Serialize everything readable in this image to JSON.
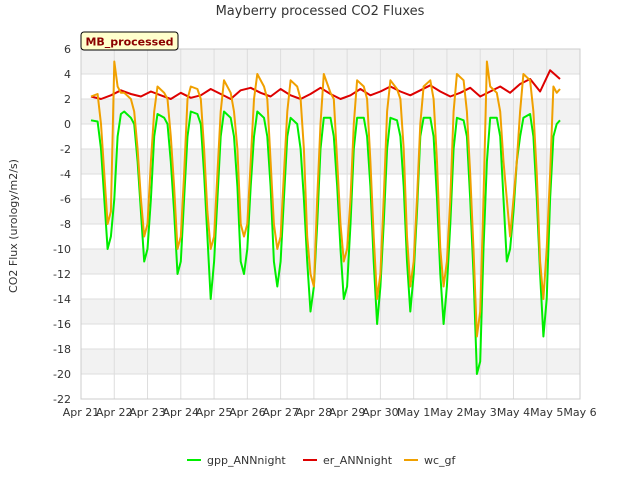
{
  "chart_data": {
    "type": "line",
    "title": "Mayberry processed CO2 Fluxes",
    "badge": "MB_processed",
    "xlabel": "",
    "ylabel": "CO2 Flux (urology/m2/s)",
    "ylim": [
      -22,
      6
    ],
    "yticks": [
      -22,
      -20,
      -18,
      -16,
      -14,
      -12,
      -10,
      -8,
      -6,
      -4,
      -2,
      0,
      2,
      4,
      6
    ],
    "xlim": [
      0,
      15
    ],
    "xtick_labels": [
      "Apr 21",
      "Apr 22",
      "Apr 23",
      "Apr 24",
      "Apr 25",
      "Apr 26",
      "Apr 27",
      "Apr 28",
      "Apr 29",
      "Apr 30",
      "May 1",
      "May 2",
      "May 3",
      "May 4",
      "May 5",
      "May 6"
    ],
    "x_units": "days since Apr 21 00:00",
    "grid": true,
    "legend_position": "bottom",
    "series": [
      {
        "name": "gpp_ANNnight",
        "color": "#00ee00",
        "x": [
          0.3,
          0.5,
          0.6,
          0.7,
          0.8,
          0.9,
          1.0,
          1.1,
          1.2,
          1.3,
          1.5,
          1.6,
          1.7,
          1.8,
          1.9,
          2.0,
          2.1,
          2.2,
          2.3,
          2.5,
          2.6,
          2.7,
          2.8,
          2.9,
          3.0,
          3.1,
          3.2,
          3.3,
          3.5,
          3.6,
          3.7,
          3.8,
          3.9,
          4.0,
          4.1,
          4.2,
          4.3,
          4.5,
          4.6,
          4.7,
          4.8,
          4.9,
          5.0,
          5.1,
          5.2,
          5.3,
          5.5,
          5.6,
          5.7,
          5.8,
          5.9,
          6.0,
          6.1,
          6.2,
          6.3,
          6.5,
          6.6,
          6.7,
          6.8,
          6.9,
          7.0,
          7.1,
          7.2,
          7.3,
          7.5,
          7.6,
          7.7,
          7.8,
          7.9,
          8.0,
          8.1,
          8.2,
          8.3,
          8.5,
          8.6,
          8.7,
          8.8,
          8.9,
          9.0,
          9.1,
          9.2,
          9.3,
          9.5,
          9.6,
          9.7,
          9.8,
          9.9,
          10.0,
          10.1,
          10.2,
          10.3,
          10.5,
          10.6,
          10.7,
          10.8,
          10.9,
          11.0,
          11.1,
          11.2,
          11.3,
          11.5,
          11.6,
          11.7,
          11.8,
          11.9,
          12.0,
          12.1,
          12.2,
          12.3,
          12.5,
          12.6,
          12.7,
          12.8,
          12.9,
          13.0,
          13.1,
          13.2,
          13.3,
          13.5,
          13.6,
          13.7,
          13.8,
          13.9,
          14.0,
          14.1,
          14.2,
          14.3,
          14.4
        ],
        "y": [
          0.3,
          0.2,
          -2,
          -6,
          -10,
          -9,
          -6,
          -1,
          0.8,
          1,
          0.5,
          0,
          -3,
          -7,
          -11,
          -10,
          -6,
          -1,
          0.8,
          0.5,
          0,
          -3,
          -7,
          -12,
          -11,
          -6,
          -1,
          1,
          0.8,
          0,
          -4,
          -9,
          -14,
          -11,
          -6,
          -1,
          1,
          0.5,
          -1,
          -5,
          -11,
          -12,
          -10,
          -5,
          -1,
          1,
          0.5,
          -1,
          -5,
          -11,
          -13,
          -11,
          -6,
          -1,
          0.5,
          0,
          -2,
          -6,
          -11,
          -15,
          -13,
          -8,
          -2,
          0.5,
          0.5,
          -1,
          -5,
          -10,
          -14,
          -13,
          -8,
          -2,
          0.5,
          0.5,
          -1,
          -5,
          -11,
          -16,
          -13,
          -8,
          -2,
          0.5,
          0.3,
          -1,
          -5,
          -11,
          -15,
          -12,
          -7,
          -1,
          0.5,
          0.5,
          -1,
          -6,
          -12,
          -16,
          -13,
          -8,
          -2,
          0.5,
          0.3,
          -1,
          -6,
          -12,
          -20,
          -19,
          -10,
          -3,
          0.5,
          0.5,
          -1,
          -6,
          -11,
          -10,
          -7,
          -3,
          -1,
          0.5,
          0.8,
          -1,
          -6,
          -12,
          -17,
          -14,
          -6,
          -1,
          0,
          0.3
        ]
      },
      {
        "name": "er_ANNnight",
        "color": "#dd0000",
        "x": [
          0.3,
          0.6,
          0.9,
          1.2,
          1.5,
          1.8,
          2.1,
          2.4,
          2.7,
          3.0,
          3.3,
          3.6,
          3.9,
          4.2,
          4.5,
          4.8,
          5.1,
          5.4,
          5.7,
          6.0,
          6.3,
          6.6,
          6.9,
          7.2,
          7.5,
          7.8,
          8.1,
          8.4,
          8.7,
          9.0,
          9.3,
          9.6,
          9.9,
          10.2,
          10.5,
          10.8,
          11.1,
          11.4,
          11.7,
          12.0,
          12.3,
          12.6,
          12.9,
          13.2,
          13.5,
          13.8,
          14.1,
          14.4
        ],
        "y": [
          2.2,
          2.0,
          2.3,
          2.7,
          2.4,
          2.2,
          2.6,
          2.3,
          2.0,
          2.5,
          2.1,
          2.3,
          2.8,
          2.4,
          2.0,
          2.7,
          2.9,
          2.5,
          2.2,
          2.8,
          2.3,
          2.0,
          2.4,
          2.9,
          2.4,
          2.0,
          2.3,
          2.8,
          2.3,
          2.6,
          3.0,
          2.6,
          2.3,
          2.7,
          3.1,
          2.6,
          2.2,
          2.5,
          2.9,
          2.2,
          2.6,
          3.0,
          2.5,
          3.2,
          3.6,
          2.6,
          4.3,
          3.6
        ]
      },
      {
        "name": "wc_gf",
        "color": "#f0a000",
        "x": [
          0.3,
          0.5,
          0.6,
          0.7,
          0.8,
          0.9,
          1.0,
          1.1,
          1.2,
          1.3,
          1.5,
          1.6,
          1.7,
          1.8,
          1.9,
          2.0,
          2.1,
          2.2,
          2.3,
          2.5,
          2.6,
          2.7,
          2.8,
          2.9,
          3.0,
          3.1,
          3.2,
          3.3,
          3.5,
          3.6,
          3.7,
          3.8,
          3.9,
          4.0,
          4.1,
          4.2,
          4.3,
          4.5,
          4.6,
          4.7,
          4.8,
          4.9,
          5.0,
          5.1,
          5.2,
          5.3,
          5.5,
          5.6,
          5.7,
          5.8,
          5.9,
          6.0,
          6.1,
          6.2,
          6.3,
          6.5,
          6.6,
          6.7,
          6.8,
          6.9,
          7.0,
          7.1,
          7.2,
          7.3,
          7.5,
          7.6,
          7.7,
          7.8,
          7.9,
          8.0,
          8.1,
          8.2,
          8.3,
          8.5,
          8.6,
          8.7,
          8.8,
          8.9,
          9.0,
          9.1,
          9.2,
          9.3,
          9.5,
          9.6,
          9.7,
          9.8,
          9.9,
          10.0,
          10.1,
          10.2,
          10.3,
          10.5,
          10.6,
          10.7,
          10.8,
          10.9,
          11.0,
          11.1,
          11.2,
          11.3,
          11.5,
          11.6,
          11.7,
          11.8,
          11.9,
          12.0,
          12.1,
          12.2,
          12.3,
          12.5,
          12.6,
          12.7,
          12.8,
          12.9,
          13.0,
          13.1,
          13.2,
          13.3,
          13.5,
          13.6,
          13.7,
          13.8,
          13.9,
          14.0,
          14.1,
          14.2,
          14.3,
          14.4
        ],
        "y": [
          2.2,
          2.4,
          0,
          -4,
          -8,
          -7,
          5,
          3,
          2.5,
          2.5,
          2.0,
          1,
          -2,
          -6,
          -9,
          -8,
          -3,
          1,
          3.0,
          2.5,
          2.0,
          -1,
          -5,
          -10,
          -9,
          -4,
          2,
          3.0,
          2.8,
          2,
          -2,
          -7,
          -10,
          -9,
          -4,
          1,
          3.5,
          2.5,
          1,
          -2,
          -8,
          -9,
          -8,
          -3,
          2,
          4.0,
          3.0,
          2,
          -3,
          -8,
          -10,
          -9,
          -4,
          1,
          3.5,
          3.0,
          2,
          -2,
          -9,
          -12,
          -13,
          -6,
          0,
          4.0,
          2.5,
          2,
          -3,
          -8,
          -11,
          -10,
          -6,
          0,
          3.5,
          3.0,
          2,
          -3,
          -9,
          -14,
          -12,
          -6,
          1,
          3.5,
          2.8,
          2,
          -2,
          -9,
          -13,
          -11,
          -6,
          0,
          3.0,
          3.5,
          2,
          -3,
          -10,
          -13,
          -11,
          -6,
          1,
          4.0,
          3.5,
          1,
          -4,
          -10,
          -17,
          -15,
          -6,
          5,
          3.0,
          2.5,
          1,
          -3,
          -6,
          -9,
          -6,
          -3,
          1,
          4.0,
          3.5,
          1,
          -4,
          -11,
          -14,
          -10,
          -4,
          3,
          2.5,
          2.8
        ]
      }
    ]
  }
}
